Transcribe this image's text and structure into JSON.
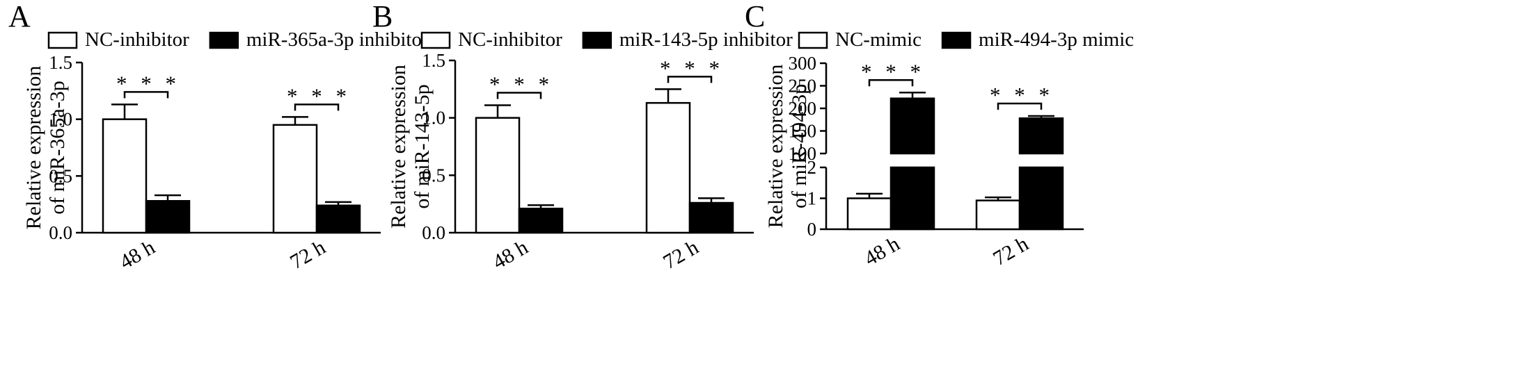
{
  "figure": {
    "panels": [
      "A",
      "B",
      "C"
    ]
  },
  "chart_data": [
    {
      "panel": "A",
      "type": "bar",
      "categories": [
        "48 h",
        "72 h"
      ],
      "series": [
        {
          "name": "NC-inhibitor",
          "values": [
            1.0,
            0.95
          ],
          "errors": [
            0.13,
            0.07
          ],
          "color": "#ffffff"
        },
        {
          "name": "miR-365a-3p inhibitor",
          "values": [
            0.28,
            0.24
          ],
          "errors": [
            0.05,
            0.03
          ],
          "color": "#000000"
        }
      ],
      "ylabel_line1": "Relative expression",
      "ylabel_line2": "of miR-365a-3p",
      "ylim": [
        0,
        1.5
      ],
      "yticks": [
        "0.0",
        "0.5",
        "1.0",
        "1.5"
      ],
      "significance": [
        "* * *",
        "* * *"
      ],
      "legend_position": "top"
    },
    {
      "panel": "B",
      "type": "bar",
      "categories": [
        "48 h",
        "72 h"
      ],
      "series": [
        {
          "name": "NC-inhibitor",
          "values": [
            1.0,
            1.13
          ],
          "errors": [
            0.11,
            0.12
          ],
          "color": "#ffffff"
        },
        {
          "name": "miR-143-5p inhibitor",
          "values": [
            0.21,
            0.26
          ],
          "errors": [
            0.03,
            0.04
          ],
          "color": "#000000"
        }
      ],
      "ylabel_line1": "Relative expression",
      "ylabel_line2": "of miR-143-5p",
      "ylim": [
        0,
        1.5
      ],
      "yticks": [
        "0.0",
        "0.5",
        "1.0",
        "1.5"
      ],
      "significance": [
        "* * *",
        "* * *"
      ],
      "legend_position": "top"
    },
    {
      "panel": "C",
      "type": "bar",
      "categories": [
        "48 h",
        "72 h"
      ],
      "series": [
        {
          "name": "NC-mimic",
          "values": [
            1.0,
            0.93
          ],
          "errors": [
            0.15,
            0.1
          ],
          "color": "#ffffff"
        },
        {
          "name": "miR-494-3p mimic",
          "values": [
            222,
            178
          ],
          "errors": [
            13,
            5
          ],
          "color": "#000000"
        }
      ],
      "ylabel_line1": "Relative expression",
      "ylabel_line2": "of miR-494-3p",
      "axis_break": true,
      "ylim_lower": [
        0,
        2
      ],
      "ylim_upper": [
        100,
        300
      ],
      "yticks_lower": [
        "0",
        "1",
        "2"
      ],
      "yticks_upper": [
        "100",
        "150",
        "200",
        "250",
        "300"
      ],
      "significance": [
        "* * *",
        "* * *"
      ],
      "legend_position": "top"
    }
  ]
}
